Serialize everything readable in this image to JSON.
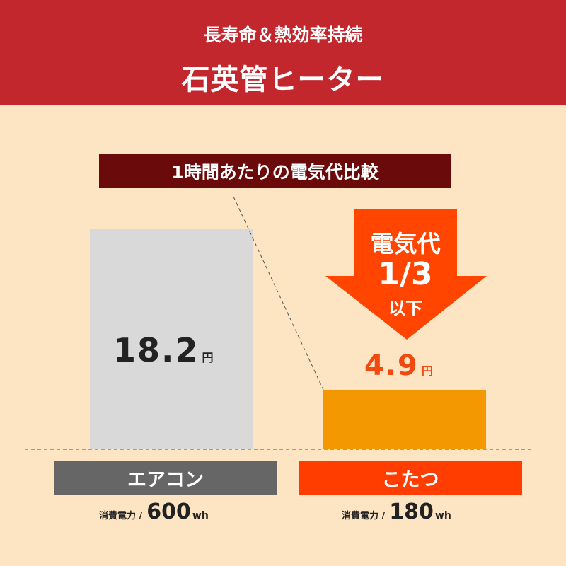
{
  "header": {
    "subtitle": "長寿命＆熱効率持続",
    "title": "石英管ヒーター"
  },
  "chart_data": {
    "type": "bar",
    "title": "1時間あたりの電気代比較",
    "categories": [
      "エアコン",
      "こたつ"
    ],
    "values": [
      18.2,
      4.9
    ],
    "unit": "円",
    "value_labels": [
      "18.2",
      "4.9"
    ],
    "colors": {
      "エアコン": "#d9d9d9",
      "こたつ": "#f39800"
    },
    "label_colors": {
      "エアコン": "#666666",
      "こたつ": "#ff3d00"
    },
    "power": [
      {
        "label": "消費電力 /",
        "value": "600",
        "unit": "wh"
      },
      {
        "label": "消費電力 /",
        "value": "180",
        "unit": "wh"
      }
    ],
    "callout": {
      "line1": "電気代",
      "line2": "1/3",
      "line3": "以下",
      "color": "#ff4500"
    }
  }
}
